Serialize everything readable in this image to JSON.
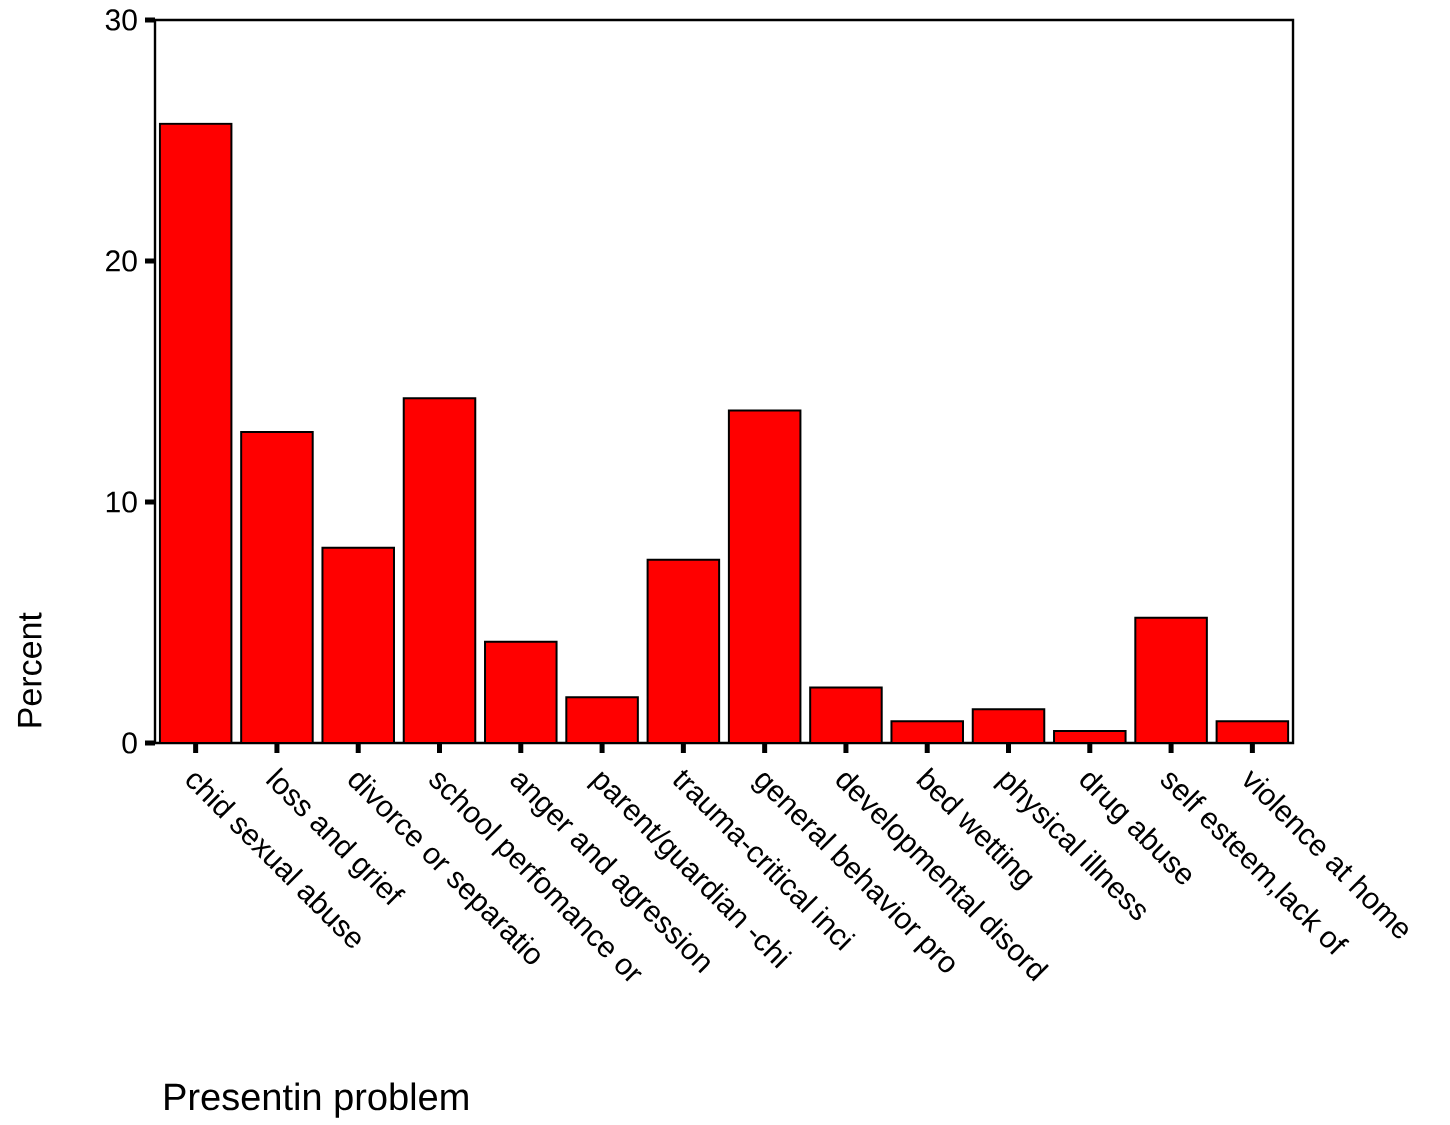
{
  "chart_data": {
    "type": "bar",
    "xlabel": "Presentin problem",
    "ylabel": "Percent",
    "categories": [
      "chid sexual abuse",
      "loss and grief",
      "divorce or separatio",
      "school perfomance or",
      "anger and agression",
      "parent/guardian -chi",
      "trauma-critical inci",
      "general behavior pro",
      "developmental disord",
      "bed wetting",
      "physical illness",
      "drug abuse",
      "self esteem,lack of",
      "violence at home"
    ],
    "values": [
      25.7,
      12.9,
      8.1,
      14.3,
      4.2,
      1.9,
      7.6,
      13.8,
      2.3,
      0.9,
      1.4,
      0.5,
      5.2,
      0.9
    ],
    "color": "#ff0000",
    "ylim": [
      0,
      30
    ],
    "yticks": [
      0,
      10,
      20,
      30
    ]
  }
}
